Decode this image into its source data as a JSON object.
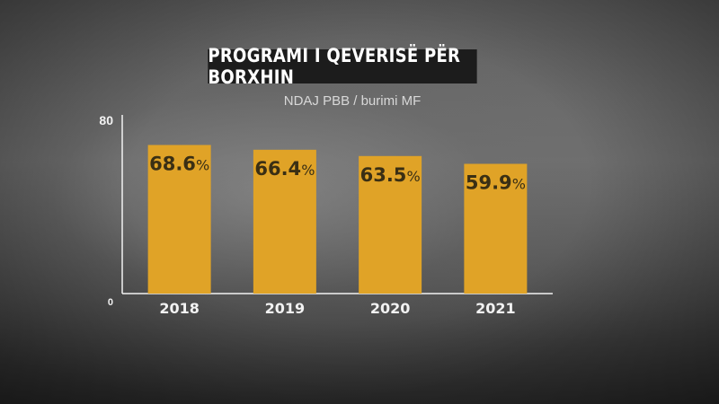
{
  "header": {
    "title": "PROGRAMI I QEVERISË PËR BORXHIN",
    "subtitle": "NDAJ PBB / burimi MF"
  },
  "colors": {
    "bar": "#e0a327",
    "title_bg": "#1c1c1c",
    "axis": "#f2f2f2"
  },
  "chart_data": {
    "type": "bar",
    "title": "PROGRAMI I QEVERISË PËR BORXHIN",
    "subtitle": "NDAJ PBB / burimi MF",
    "categories": [
      "2018",
      "2019",
      "2020",
      "2021"
    ],
    "values": [
      68.6,
      66.4,
      63.5,
      59.9
    ],
    "value_labels": [
      "68.6",
      "66.4",
      "63.5",
      "59.9"
    ],
    "value_suffix": "%",
    "ylim": [
      0,
      80
    ],
    "yticks": [
      "0",
      "80"
    ],
    "grid": false,
    "legend": "none"
  }
}
